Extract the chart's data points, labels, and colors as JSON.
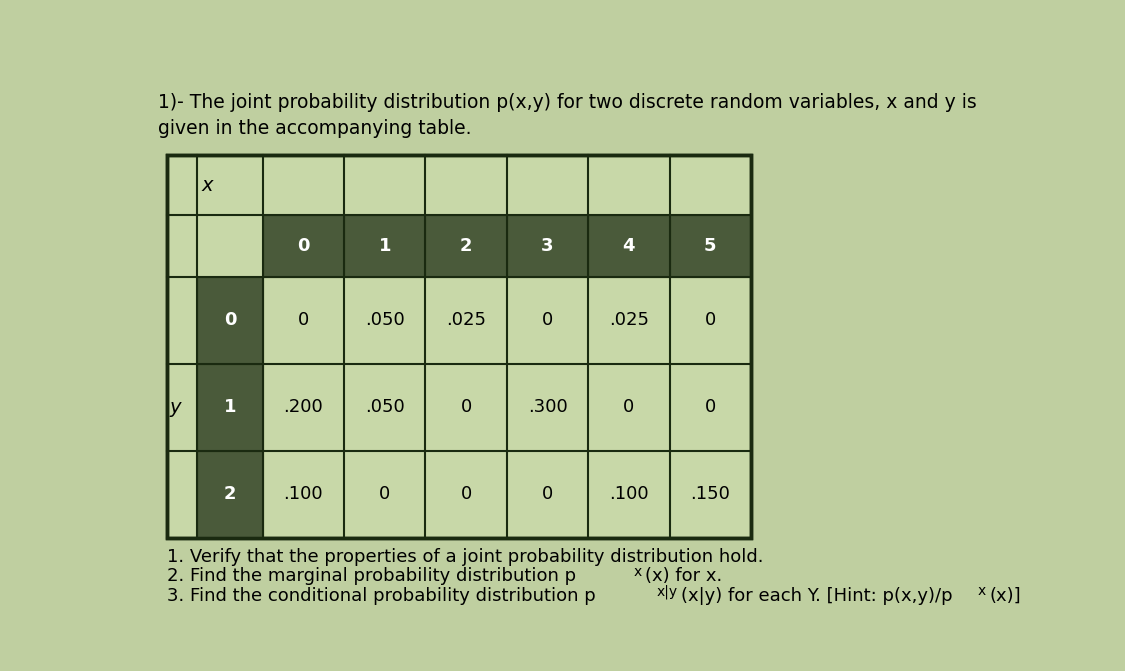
{
  "title_line1": "1)- The joint probability distribution p(x,y) for two discrete random variables, x and y is",
  "title_line2": "given in the accompanying table.",
  "bg_color": "#bfcfa0",
  "table_outer_bg": "#c8d8a8",
  "header_cell_bg": "#4a5a3a",
  "header_text_color": "#ffffff",
  "data_cell_bg": "#c0d0a0",
  "border_color": "#1a2a10",
  "x_values": [
    "0",
    "1",
    "2",
    "3",
    "4",
    "5"
  ],
  "y_values": [
    "0",
    "1",
    "2"
  ],
  "table_data": [
    [
      "0",
      ".050",
      ".025",
      "0",
      ".025",
      "0"
    ],
    [
      ".200",
      ".050",
      "0",
      ".300",
      "0",
      "0"
    ],
    [
      ".100",
      "0",
      "0",
      "0",
      ".100",
      ".150"
    ]
  ],
  "footnote1": "1. Verify that the properties of a joint probability distribution hold.",
  "footnote2": "2. Find the marginal probability distribution p",
  "footnote2b": "(x) for x.",
  "footnote3": "3. Find the conditional probability distribution p",
  "footnote3b": "(x|y) for each Y. [Hint: p(x,y)/p",
  "footnote3c": "(x)]",
  "font_size_title": 13.5,
  "font_size_table": 13,
  "font_size_footnote": 13
}
